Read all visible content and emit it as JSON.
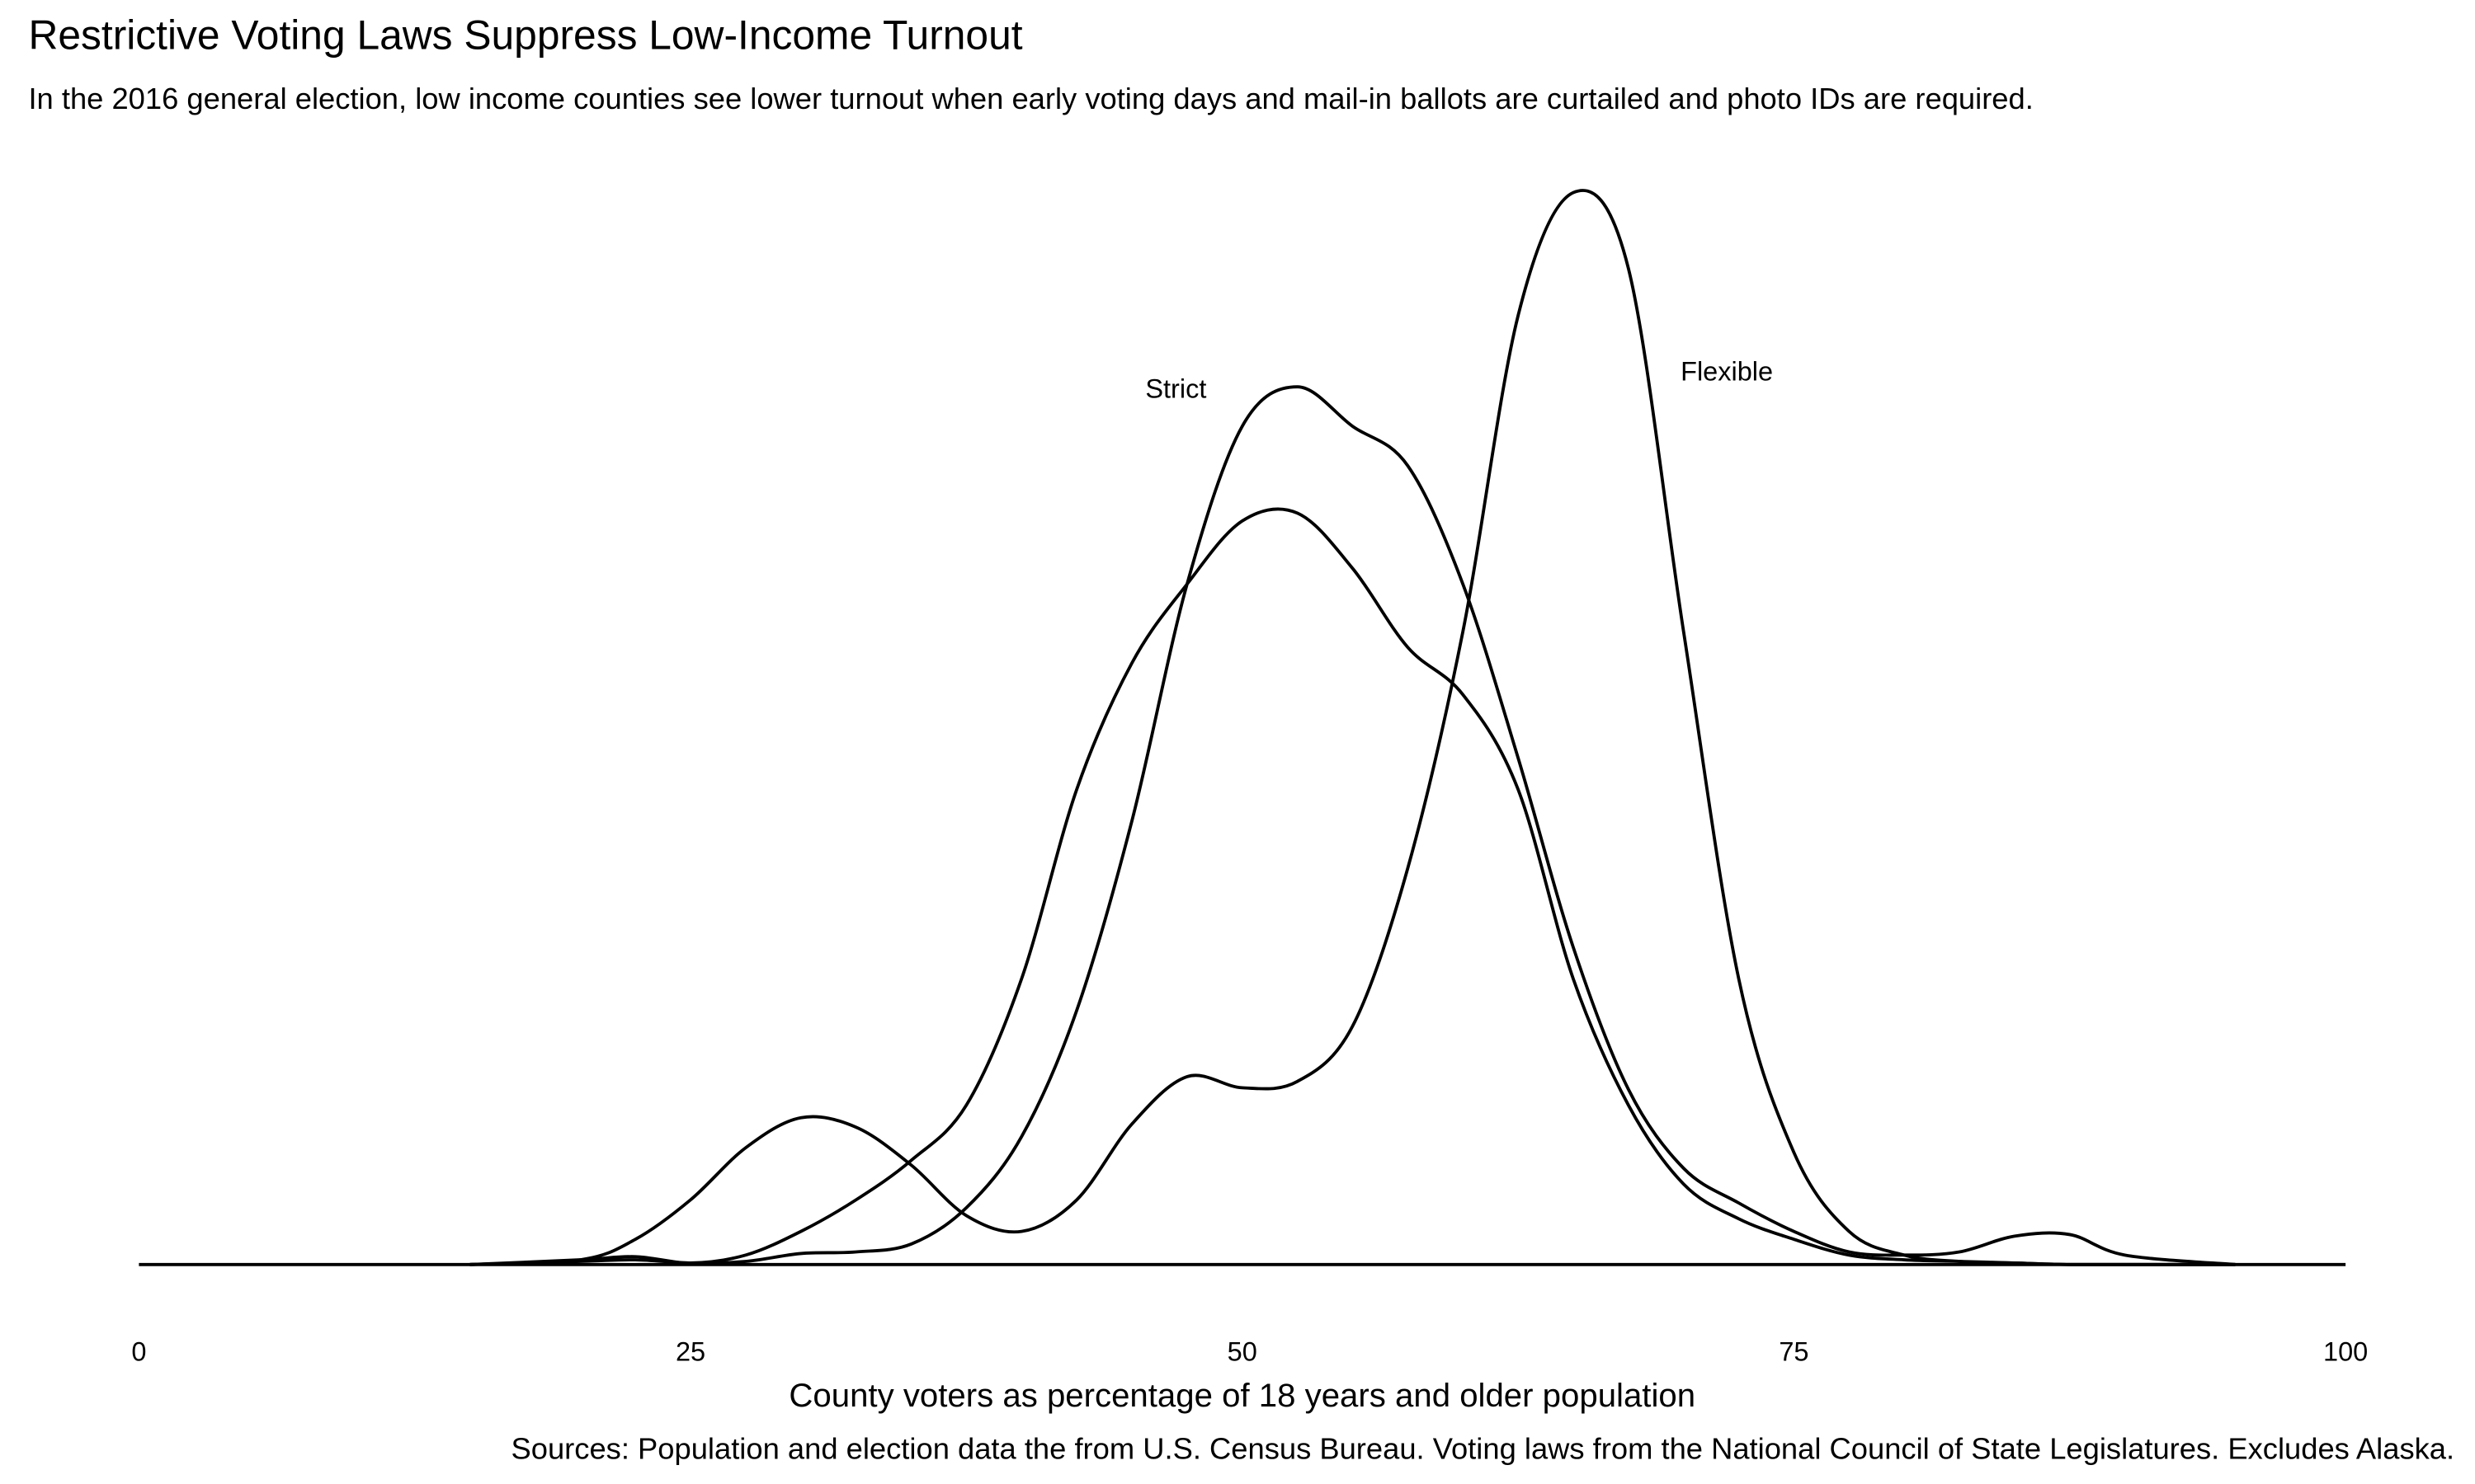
{
  "chart_data": {
    "type": "line",
    "title": "Restrictive Voting Laws Suppress Low-Income Turnout",
    "subtitle": "In the 2016 general election, low income counties see lower turnout when early voting days and mail-in ballots are curtailed and photo IDs are required.",
    "x_label": "County voters as percentage of 18 years and older population",
    "caption": "Sources: Population and election data the from U.S. Census Bureau. Voting laws from the National Council of State Legislatures. Excludes Alaska.",
    "x": [
      15,
      20,
      22.5,
      25,
      27.5,
      30,
      32.5,
      35,
      37.5,
      40,
      42.5,
      45,
      47.5,
      50,
      52.5,
      55,
      57.5,
      60,
      62.5,
      65,
      67.5,
      70,
      72.5,
      75,
      77.5,
      80,
      82.5,
      85,
      87.5,
      90,
      95
    ],
    "series": [
      {
        "name": "Strict",
        "color": "#000000",
        "values": [
          0,
          0.0002,
          0.0003,
          0.0001,
          0.0002,
          0.0007,
          0.0008,
          0.0013,
          0.0036,
          0.0081,
          0.0161,
          0.0281,
          0.0431,
          0.0531,
          0.0556,
          0.0531,
          0.0506,
          0.0431,
          0.0321,
          0.0201,
          0.0111,
          0.0061,
          0.0039,
          0.0021,
          0.0008,
          0.0006,
          0.0008,
          0.0018,
          0.0019,
          0.0006,
          0
        ]
      },
      {
        "name": "Flexible",
        "color": "#000000",
        "values": [
          0,
          0.0003,
          0.0016,
          0.0041,
          0.0074,
          0.0093,
          0.0087,
          0.0063,
          0.0031,
          0.0021,
          0.0041,
          0.0089,
          0.0119,
          0.0112,
          0.0116,
          0.0151,
          0.0251,
          0.0401,
          0.0601,
          0.0679,
          0.0631,
          0.0401,
          0.0181,
          0.0071,
          0.0021,
          0.0006,
          0.0002,
          0.0001,
          0,
          0,
          0
        ]
      },
      {
        "color": "#000000",
        "values": [
          0,
          0.0003,
          0.0005,
          0.0001,
          0.0006,
          0.0021,
          0.0041,
          0.0066,
          0.0101,
          0.0181,
          0.0301,
          0.0381,
          0.0431,
          0.0471,
          0.0476,
          0.0441,
          0.0391,
          0.0361,
          0.0301,
          0.0181,
          0.0101,
          0.0051,
          0.0029,
          0.0016,
          0.0006,
          0.0003,
          0.0002,
          0.0001,
          0,
          0,
          0
        ]
      }
    ],
    "xlim": [
      0,
      100
    ],
    "xticks": [
      0,
      25,
      50,
      75,
      100
    ],
    "ylim": [
      0,
      0.07
    ],
    "grid": false
  }
}
